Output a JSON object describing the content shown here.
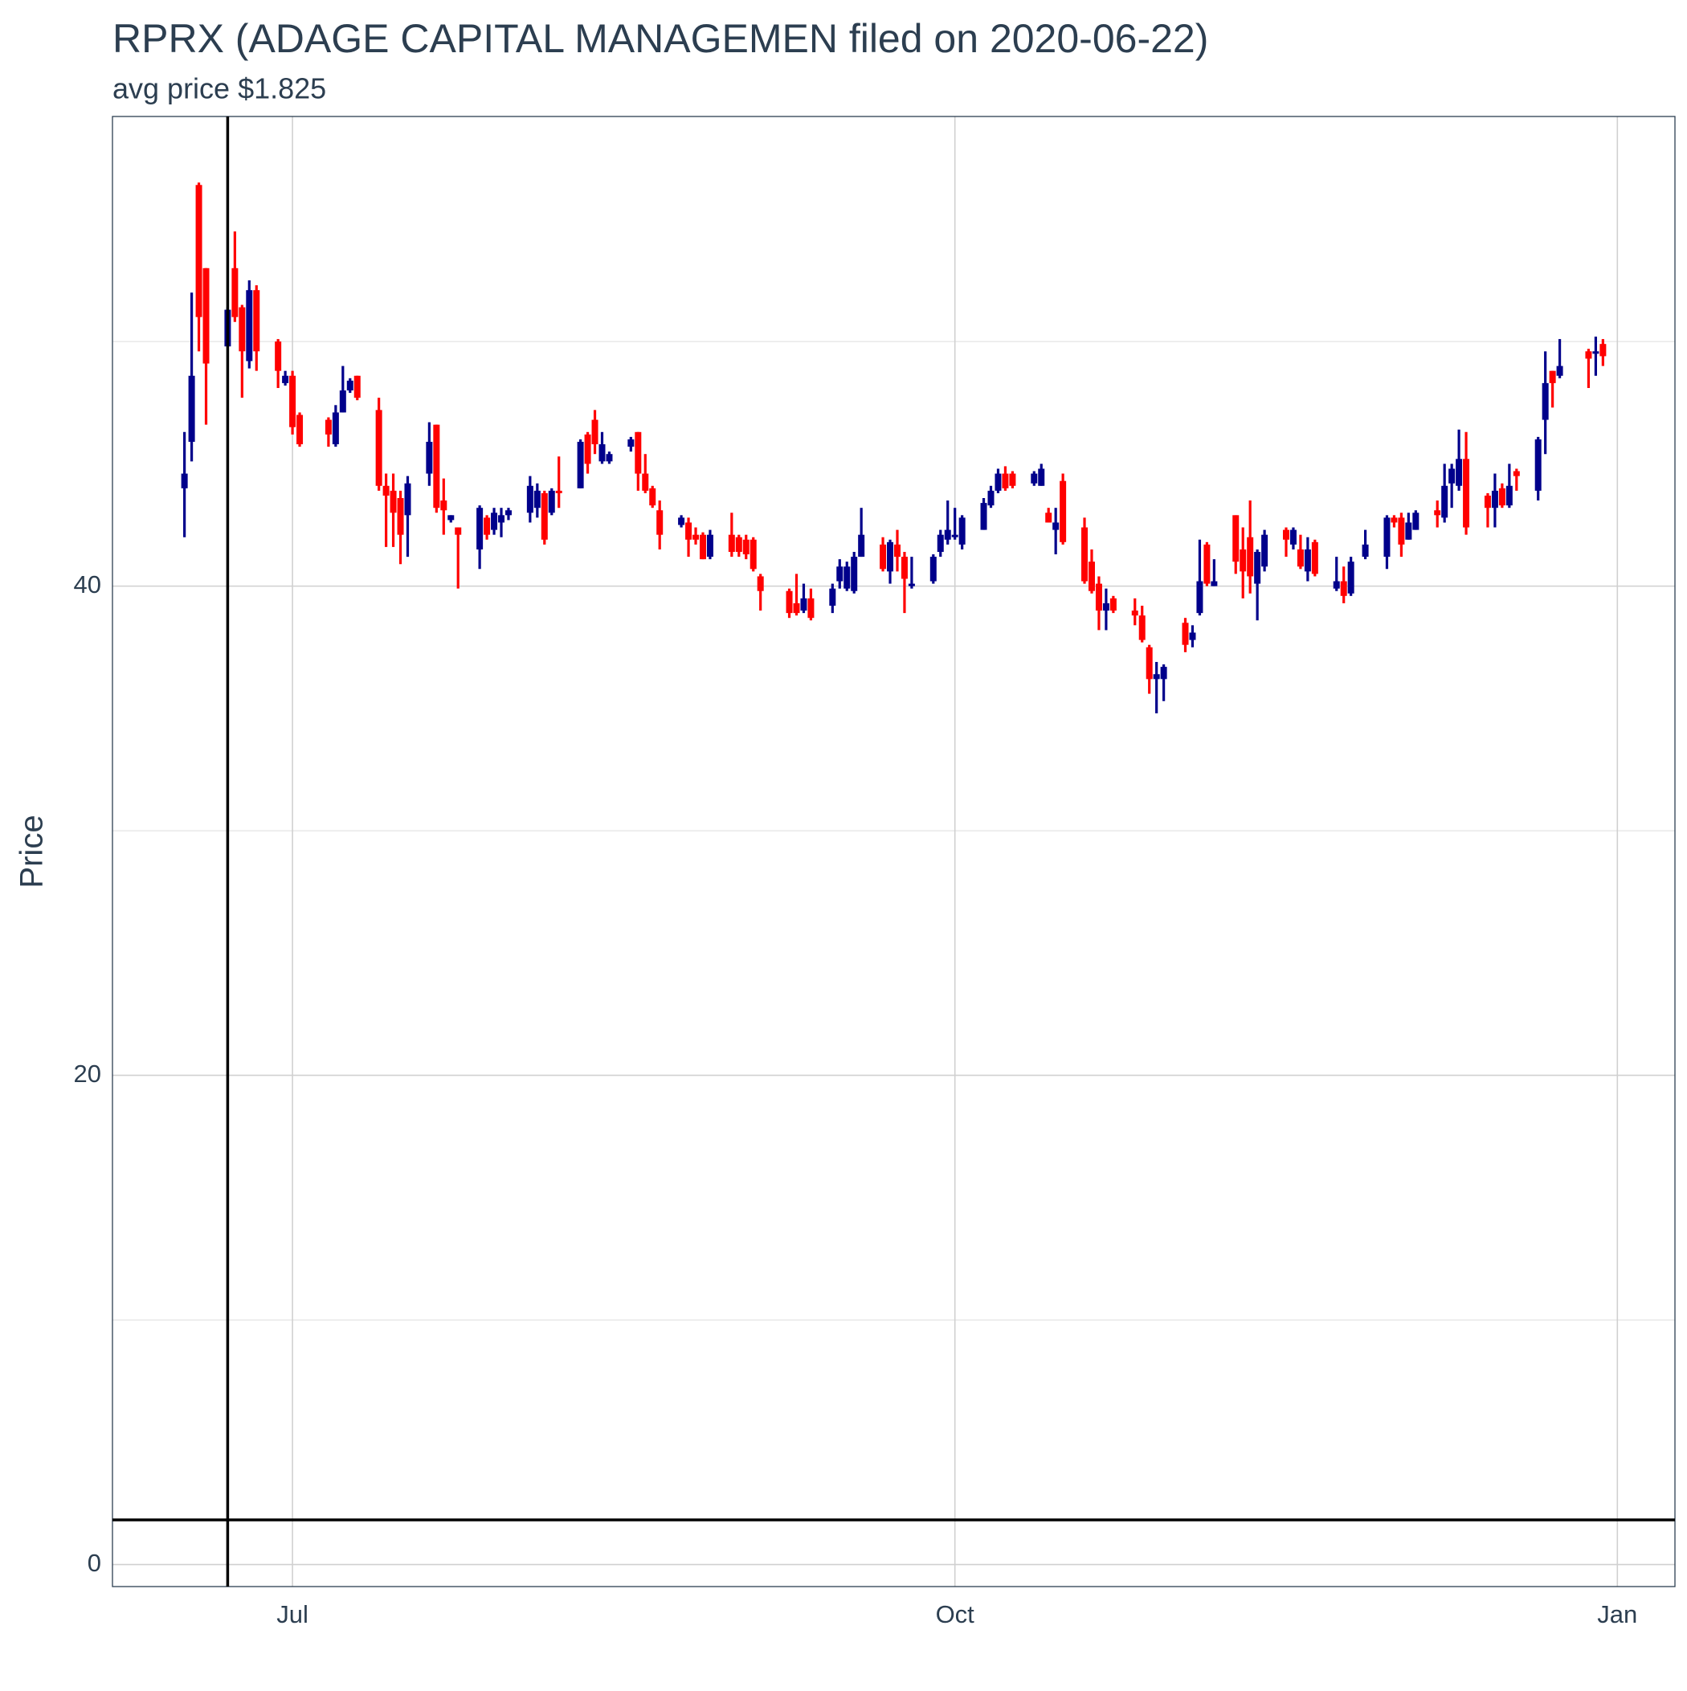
{
  "chart_data": {
    "type": "candlestick",
    "title": "RPRX (ADAGE CAPITAL MANAGEMEN filed on 2020-06-22)",
    "subtitle": "avg price $1.825",
    "y_label": "Price",
    "up_color": "#00008b",
    "down_color": "#ff0000",
    "hline": 1.825,
    "vline": "2020-06-22",
    "xlim": [
      "2020-06-06",
      "2021-01-09"
    ],
    "xticks": [
      {
        "value": "2020-07-01",
        "label": "Jul"
      },
      {
        "value": "2020-10-01",
        "label": "Oct"
      },
      {
        "value": "2021-01-01",
        "label": "Jan"
      }
    ],
    "ylim": [
      -0.9,
      59.2
    ],
    "yticks": [
      0,
      20,
      40
    ],
    "minor_yticks": [
      10,
      30,
      50
    ],
    "grid": true,
    "x": [
      "2020-06-16",
      "2020-06-17",
      "2020-06-18",
      "2020-06-19",
      "2020-06-22",
      "2020-06-23",
      "2020-06-24",
      "2020-06-25",
      "2020-06-26",
      "2020-06-29",
      "2020-06-30",
      "2020-07-01",
      "2020-07-02",
      "2020-07-06",
      "2020-07-07",
      "2020-07-08",
      "2020-07-09",
      "2020-07-10",
      "2020-07-13",
      "2020-07-14",
      "2020-07-15",
      "2020-07-16",
      "2020-07-17",
      "2020-07-20",
      "2020-07-21",
      "2020-07-22",
      "2020-07-23",
      "2020-07-24",
      "2020-07-27",
      "2020-07-28",
      "2020-07-29",
      "2020-07-30",
      "2020-07-31",
      "2020-08-03",
      "2020-08-04",
      "2020-08-05",
      "2020-08-06",
      "2020-08-07",
      "2020-08-10",
      "2020-08-11",
      "2020-08-12",
      "2020-08-13",
      "2020-08-14",
      "2020-08-17",
      "2020-08-18",
      "2020-08-19",
      "2020-08-20",
      "2020-08-21",
      "2020-08-24",
      "2020-08-25",
      "2020-08-26",
      "2020-08-27",
      "2020-08-28",
      "2020-08-31",
      "2020-09-01",
      "2020-09-02",
      "2020-09-03",
      "2020-09-04",
      "2020-09-08",
      "2020-09-09",
      "2020-09-10",
      "2020-09-11",
      "2020-09-14",
      "2020-09-15",
      "2020-09-16",
      "2020-09-17",
      "2020-09-18",
      "2020-09-21",
      "2020-09-22",
      "2020-09-23",
      "2020-09-24",
      "2020-09-25",
      "2020-09-28",
      "2020-09-29",
      "2020-09-30",
      "2020-10-01",
      "2020-10-02",
      "2020-10-05",
      "2020-10-06",
      "2020-10-07",
      "2020-10-08",
      "2020-10-09",
      "2020-10-12",
      "2020-10-13",
      "2020-10-14",
      "2020-10-15",
      "2020-10-16",
      "2020-10-19",
      "2020-10-20",
      "2020-10-21",
      "2020-10-22",
      "2020-10-23",
      "2020-10-26",
      "2020-10-27",
      "2020-10-28",
      "2020-10-29",
      "2020-10-30",
      "2020-11-02",
      "2020-11-03",
      "2020-11-04",
      "2020-11-05",
      "2020-11-06",
      "2020-11-09",
      "2020-11-10",
      "2020-11-11",
      "2020-11-12",
      "2020-11-13",
      "2020-11-16",
      "2020-11-17",
      "2020-11-18",
      "2020-11-19",
      "2020-11-20",
      "2020-11-23",
      "2020-11-24",
      "2020-11-25",
      "2020-11-27",
      "2020-11-30",
      "2020-12-01",
      "2020-12-02",
      "2020-12-03",
      "2020-12-04",
      "2020-12-07",
      "2020-12-08",
      "2020-12-09",
      "2020-12-10",
      "2020-12-11",
      "2020-12-14",
      "2020-12-15",
      "2020-12-16",
      "2020-12-17",
      "2020-12-18",
      "2020-12-21",
      "2020-12-22",
      "2020-12-23",
      "2020-12-24",
      "2020-12-28",
      "2020-12-29",
      "2020-12-30"
    ],
    "open": [
      44.0,
      45.9,
      56.4,
      53.0,
      49.8,
      53.0,
      51.4,
      49.2,
      52.1,
      50.0,
      48.3,
      48.6,
      47.0,
      46.8,
      45.8,
      47.1,
      48.0,
      48.6,
      47.2,
      44.1,
      43.9,
      43.6,
      42.9,
      44.6,
      46.6,
      43.5,
      42.7,
      42.4,
      41.5,
      42.8,
      42.3,
      42.6,
      42.9,
      43.0,
      43.2,
      43.8,
      43.0,
      43.9,
      44.0,
      46.2,
      46.8,
      45.1,
      45.1,
      45.7,
      46.3,
      44.6,
      44.0,
      43.1,
      42.5,
      42.6,
      42.1,
      42.1,
      41.2,
      42.1,
      42.0,
      41.9,
      41.9,
      40.4,
      39.8,
      39.3,
      39.0,
      39.5,
      39.2,
      40.2,
      39.9,
      39.8,
      41.2,
      41.7,
      40.6,
      41.7,
      41.2,
      40.0,
      40.2,
      41.4,
      41.9,
      42.0,
      41.7,
      42.3,
      43.3,
      43.9,
      44.6,
      44.6,
      44.2,
      44.1,
      43.0,
      42.3,
      44.3,
      42.4,
      41.0,
      40.1,
      39.0,
      39.5,
      39.0,
      38.8,
      37.5,
      36.2,
      36.2,
      38.5,
      37.8,
      38.9,
      41.7,
      40.0,
      42.9,
      41.5,
      42.0,
      40.1,
      40.8,
      42.3,
      41.7,
      41.5,
      40.6,
      41.8,
      39.9,
      40.2,
      39.7,
      41.2,
      41.2,
      42.8,
      42.8,
      41.9,
      42.3,
      43.1,
      42.8,
      44.2,
      44.1,
      45.2,
      43.7,
      43.2,
      44.0,
      43.3,
      44.7,
      43.9,
      46.8,
      48.8,
      48.6,
      49.6,
      49.5,
      49.9
    ],
    "high": [
      46.3,
      52.0,
      56.5,
      53.0,
      51.4,
      54.5,
      51.5,
      52.5,
      52.3,
      50.1,
      48.8,
      48.8,
      47.1,
      46.9,
      47.4,
      49.0,
      48.5,
      48.6,
      47.7,
      44.6,
      44.6,
      43.9,
      44.5,
      46.7,
      46.6,
      44.4,
      42.9,
      42.4,
      43.3,
      42.9,
      43.2,
      43.2,
      43.2,
      44.5,
      44.2,
      43.9,
      44.0,
      45.3,
      46.0,
      46.3,
      47.2,
      46.3,
      45.5,
      46.1,
      46.3,
      45.4,
      44.1,
      43.5,
      42.9,
      42.8,
      42.4,
      42.2,
      42.3,
      43.0,
      42.1,
      42.1,
      42.0,
      40.5,
      39.9,
      40.5,
      40.1,
      39.9,
      40.1,
      41.1,
      41.0,
      41.4,
      43.2,
      42.0,
      41.9,
      42.3,
      41.4,
      41.2,
      41.3,
      42.3,
      43.5,
      43.2,
      42.9,
      43.6,
      44.1,
      44.8,
      44.9,
      44.7,
      44.7,
      45.0,
      43.2,
      43.2,
      44.6,
      42.8,
      41.5,
      40.4,
      39.9,
      39.6,
      39.5,
      39.2,
      37.6,
      36.9,
      36.8,
      38.7,
      38.4,
      41.9,
      41.8,
      41.1,
      42.9,
      42.4,
      43.5,
      41.5,
      42.3,
      42.4,
      42.4,
      42.1,
      42.0,
      41.9,
      41.2,
      40.8,
      41.2,
      42.3,
      42.9,
      42.9,
      43.0,
      43.0,
      43.1,
      43.5,
      45.0,
      45.0,
      46.4,
      46.3,
      43.8,
      44.6,
      44.2,
      45.0,
      44.8,
      46.1,
      49.6,
      48.8,
      50.1,
      49.7,
      50.2,
      50.1
    ],
    "low": [
      42.0,
      45.1,
      49.6,
      46.6,
      49.8,
      50.8,
      47.7,
      48.9,
      48.8,
      48.1,
      48.2,
      46.2,
      45.7,
      45.7,
      45.7,
      47.1,
      47.9,
      47.6,
      43.9,
      41.6,
      41.6,
      40.9,
      41.2,
      44.1,
      43.0,
      42.1,
      42.6,
      39.9,
      40.7,
      41.9,
      42.1,
      42.0,
      42.7,
      42.6,
      42.8,
      41.7,
      42.9,
      43.2,
      44.0,
      44.6,
      45.4,
      45.0,
      45.0,
      45.5,
      43.9,
      43.8,
      43.2,
      41.5,
      42.4,
      41.2,
      41.7,
      41.1,
      41.1,
      41.2,
      41.2,
      41.1,
      40.6,
      39.0,
      38.7,
      38.8,
      38.9,
      38.6,
      38.9,
      39.9,
      39.8,
      39.7,
      41.2,
      40.6,
      40.1,
      40.6,
      38.9,
      39.9,
      40.1,
      41.2,
      41.7,
      41.9,
      41.5,
      42.3,
      43.2,
      43.8,
      43.9,
      44.0,
      44.1,
      44.1,
      42.6,
      41.3,
      41.7,
      40.1,
      39.7,
      38.2,
      38.2,
      38.9,
      38.4,
      37.7,
      35.6,
      34.8,
      35.3,
      37.3,
      37.5,
      38.8,
      40.0,
      40.0,
      40.5,
      39.5,
      39.7,
      38.6,
      40.6,
      41.2,
      41.5,
      40.7,
      40.2,
      40.4,
      39.8,
      39.3,
      39.6,
      41.1,
      40.7,
      42.4,
      41.2,
      41.9,
      42.3,
      42.4,
      42.6,
      43.2,
      43.9,
      42.1,
      42.4,
      42.4,
      43.2,
      43.2,
      43.9,
      43.5,
      45.4,
      47.3,
      48.5,
      48.1,
      48.6,
      49.0
    ],
    "close": [
      44.6,
      48.6,
      51.0,
      49.1,
      51.3,
      51.0,
      49.6,
      52.1,
      49.6,
      48.8,
      48.6,
      46.5,
      45.8,
      46.2,
      47.1,
      48.0,
      48.4,
      47.7,
      44.1,
      43.7,
      43.0,
      42.1,
      44.2,
      45.9,
      43.2,
      43.1,
      42.9,
      42.1,
      43.2,
      42.1,
      43.0,
      42.9,
      43.1,
      44.1,
      43.9,
      41.9,
      43.9,
      43.8,
      45.9,
      45.0,
      45.8,
      45.8,
      45.4,
      46.0,
      44.6,
      43.9,
      43.3,
      42.1,
      42.8,
      41.9,
      41.9,
      41.1,
      42.1,
      41.4,
      41.4,
      41.3,
      40.7,
      39.8,
      38.9,
      38.9,
      39.5,
      38.7,
      39.9,
      40.8,
      40.8,
      41.2,
      42.1,
      40.7,
      41.8,
      41.2,
      40.3,
      40.1,
      41.2,
      42.1,
      42.3,
      42.1,
      42.8,
      43.4,
      43.9,
      44.6,
      44.0,
      44.1,
      44.6,
      44.8,
      42.6,
      42.6,
      41.8,
      40.2,
      39.8,
      39.0,
      39.3,
      39.0,
      38.8,
      37.8,
      36.2,
      36.4,
      36.7,
      37.6,
      38.1,
      40.2,
      40.1,
      40.2,
      41.0,
      40.6,
      40.4,
      41.4,
      42.1,
      41.9,
      42.3,
      40.8,
      41.5,
      40.5,
      40.2,
      39.6,
      41.0,
      41.7,
      42.8,
      42.6,
      41.7,
      42.6,
      43.0,
      42.9,
      44.1,
      44.8,
      45.2,
      42.4,
      43.2,
      43.9,
      43.3,
      44.1,
      44.5,
      46.0,
      48.3,
      48.3,
      49.0,
      49.3,
      49.6,
      49.4
    ]
  }
}
